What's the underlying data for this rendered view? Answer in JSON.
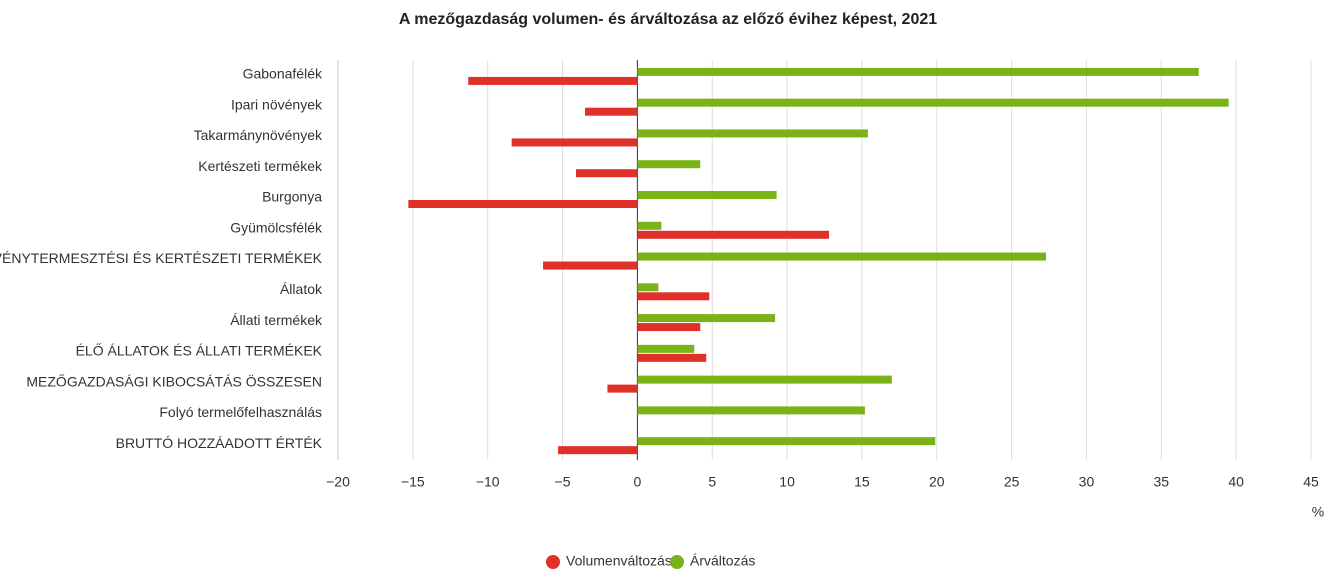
{
  "chart_data": {
    "type": "hbar",
    "title": "A mezőgazdaság volumen- és árváltozása az előző évihez képest, 2021",
    "xlabel": "%",
    "categories": [
      "Gabonafélék",
      "Ipari növények",
      "Takarmánynövények",
      "Kertészeti termékek",
      "Burgonya",
      "Gyümölcsfélék",
      "NÖVÉNYTERMESZTÉSI ÉS KERTÉSZETI TERMÉKEK",
      "Állatok",
      "Állati termékek",
      "ÉLŐ ÁLLATOK ÉS ÁLLATI TERMÉKEK",
      "MEZŐGAZDASÁGI KIBOCSÁTÁS ÖSSZESEN",
      "Folyó termelőfelhasználás",
      "BRUTTÓ HOZZÁADOTT ÉRTÉK"
    ],
    "series": [
      {
        "name": "Volumenváltozás",
        "color": "#e0302a",
        "values": [
          -11.3,
          -3.5,
          -8.4,
          -4.1,
          -15.3,
          12.8,
          -6.3,
          4.8,
          4.2,
          4.6,
          -2.0,
          0,
          -5.3
        ]
      },
      {
        "name": "Árváltozás",
        "color": "#7ab317",
        "values": [
          37.5,
          39.5,
          15.4,
          4.2,
          9.3,
          1.6,
          27.3,
          1.4,
          9.2,
          3.8,
          17.0,
          15.2,
          19.9
        ]
      }
    ],
    "xlim": [
      -20,
      45
    ],
    "xticks": [
      {
        "value": -20,
        "label": "−20"
      },
      {
        "value": -15,
        "label": "−15"
      },
      {
        "value": -10,
        "label": "−10"
      },
      {
        "value": -5,
        "label": "−5"
      },
      0,
      5,
      10,
      15,
      20,
      25,
      30,
      35,
      40,
      45
    ],
    "grid": true,
    "legend": "bottom"
  }
}
